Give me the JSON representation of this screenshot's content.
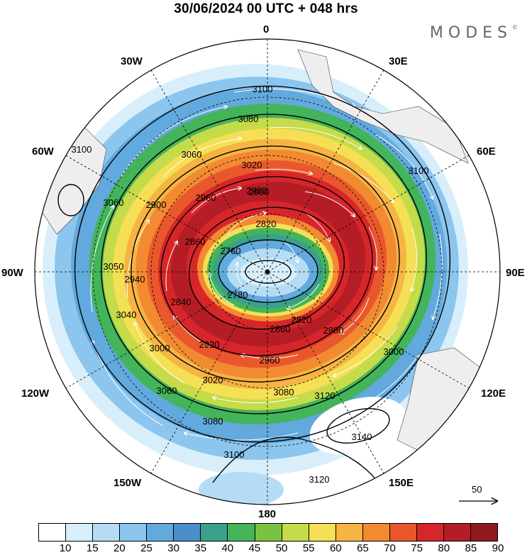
{
  "title": "30/06/2024  00 UTC  + 048 hrs",
  "logo": "MODES",
  "logo_mark": "©",
  "lon_labels": {
    "top": "0",
    "top_left": "30W",
    "top_right": "30E",
    "upper_left": "60W",
    "upper_right": "60E",
    "left": "90W",
    "right": "90E",
    "lower_left": "120W",
    "lower_right": "120E",
    "bottom_left": "150W",
    "bottom_right": "150E",
    "bottom": "180"
  },
  "contour_labels": [
    "3100",
    "3080",
    "3060",
    "3020",
    "2980",
    "2960",
    "2900",
    "2820",
    "2860",
    "2760",
    "2780",
    "2840",
    "2940",
    "2900",
    "3050",
    "3060",
    "3100",
    "3040",
    "3000",
    "2920",
    "2860",
    "2980",
    "2820",
    "2960",
    "3020",
    "3060",
    "3080",
    "3080",
    "3120",
    "3140",
    "3100",
    "3120",
    "3100",
    "3000"
  ],
  "colorbar": {
    "ticks": [
      "10",
      "15",
      "20",
      "25",
      "30",
      "35",
      "40",
      "45",
      "50",
      "55",
      "60",
      "65",
      "70",
      "75",
      "80",
      "85",
      "90"
    ],
    "colors": [
      "#ffffff",
      "#d8effb",
      "#b4dcf5",
      "#8cc6ee",
      "#62a9dd",
      "#4c8ec9",
      "#3aa08b",
      "#44b45a",
      "#7cc242",
      "#c5db4a",
      "#f5df55",
      "#f6b443",
      "#f28a32",
      "#e9582c",
      "#d7262a",
      "#b41d25",
      "#8e1a1c"
    ]
  },
  "reference_vector": "50"
}
